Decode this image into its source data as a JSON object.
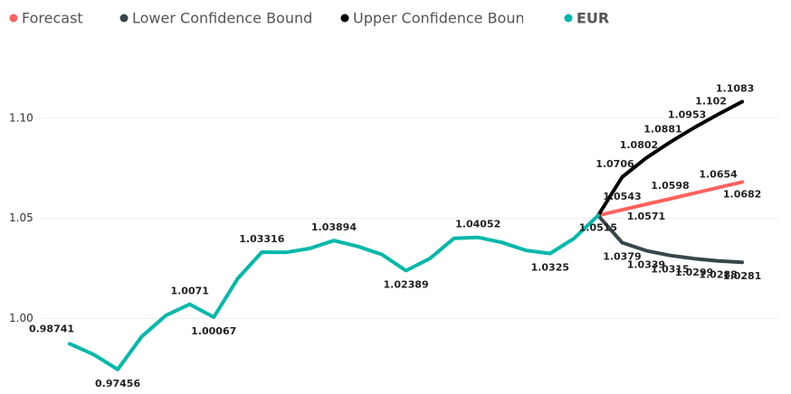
{
  "chart_data": {
    "type": "line",
    "ylim": [
      0.965,
      1.12
    ],
    "yticks": [
      {
        "value": 1.0,
        "label": "1.00"
      },
      {
        "value": 1.05,
        "label": "1.05"
      },
      {
        "value": 1.1,
        "label": "1.10"
      }
    ],
    "grid": true,
    "legend": "top",
    "series": [
      {
        "name": "Forecast",
        "color": "#FD625E",
        "values": [
          null,
          null,
          null,
          null,
          null,
          null,
          null,
          null,
          null,
          null,
          null,
          null,
          null,
          null,
          null,
          null,
          null,
          null,
          null,
          null,
          null,
          null,
          1.0515,
          1.0543,
          1.0571,
          1.0598,
          1.0626,
          1.0654,
          1.0682
        ],
        "value_labels": [
          null,
          null,
          null,
          null,
          null,
          null,
          null,
          null,
          null,
          null,
          null,
          null,
          null,
          null,
          null,
          null,
          null,
          null,
          null,
          null,
          null,
          null,
          null,
          "1.0543",
          "1.0571",
          "1.0598",
          null,
          "1.0654",
          "1.0682"
        ]
      },
      {
        "name": "Lower Confidence Bound",
        "color": "#374649",
        "values": [
          null,
          null,
          null,
          null,
          null,
          null,
          null,
          null,
          null,
          null,
          null,
          null,
          null,
          null,
          null,
          null,
          null,
          null,
          null,
          null,
          null,
          null,
          1.0515,
          1.0379,
          1.0339,
          1.0315,
          1.0299,
          1.0288,
          1.0281
        ],
        "value_labels": [
          null,
          null,
          null,
          null,
          null,
          null,
          null,
          null,
          null,
          null,
          null,
          null,
          null,
          null,
          null,
          null,
          null,
          null,
          null,
          null,
          null,
          null,
          null,
          "1.0379",
          "1.0339",
          "1.0315",
          "1.0299",
          "1.0288",
          "1.0281"
        ]
      },
      {
        "name": "Upper Confidence Bound",
        "color": "#000000",
        "values": [
          null,
          null,
          null,
          null,
          null,
          null,
          null,
          null,
          null,
          null,
          null,
          null,
          null,
          null,
          null,
          null,
          null,
          null,
          null,
          null,
          null,
          null,
          1.0515,
          1.0706,
          1.0802,
          1.0881,
          1.0953,
          1.102,
          1.1083
        ],
        "value_labels": [
          null,
          null,
          null,
          null,
          null,
          null,
          null,
          null,
          null,
          null,
          null,
          null,
          null,
          null,
          null,
          null,
          null,
          null,
          null,
          null,
          null,
          null,
          null,
          "1.0706",
          "1.0802",
          "1.0881",
          "1.0953",
          "1.102",
          "1.1083"
        ]
      },
      {
        "name": "EUR",
        "color": "#01B8AA",
        "values": [
          0.98741,
          0.982,
          0.97456,
          0.991,
          1.0015,
          1.0071,
          1.00067,
          1.02,
          1.03316,
          1.033,
          1.035,
          1.03894,
          1.036,
          1.032,
          1.02389,
          1.03,
          1.04,
          1.04052,
          1.038,
          1.034,
          1.0325,
          1.04,
          1.0515,
          null,
          null,
          null,
          null,
          null,
          null
        ],
        "value_labels": [
          "0.98741",
          null,
          "0.97456",
          null,
          null,
          "1.0071",
          "1.00067",
          null,
          "1.03316",
          null,
          null,
          "1.03894",
          null,
          null,
          "1.02389",
          null,
          null,
          "1.04052",
          null,
          null,
          "1.0325",
          null,
          "1.0515",
          null,
          null,
          null,
          null,
          null,
          null
        ]
      }
    ]
  }
}
